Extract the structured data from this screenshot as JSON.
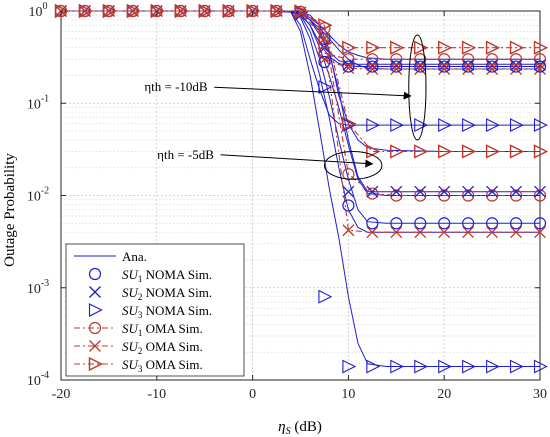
{
  "chart_data": {
    "type": "line",
    "title": "",
    "xlabel": "ηS (dB)",
    "ylabel": "Outage Probability",
    "xlim": [
      -20,
      30
    ],
    "ylim": [
      0.0001,
      1
    ],
    "yscale": "log",
    "grid": true,
    "legend_placement": "bottom-left",
    "x_ticks": [
      -20,
      -10,
      0,
      10,
      20,
      30
    ],
    "x_tick_labels": [
      "-20",
      "-10",
      "0",
      "10",
      "20",
      "30"
    ],
    "y_ticks": [
      0.0001,
      0.001,
      0.01,
      0.1,
      1
    ],
    "y_tick_labels": [
      {
        "base": "10",
        "exp": "-4"
      },
      {
        "base": "10",
        "exp": "-3"
      },
      {
        "base": "10",
        "exp": "-2"
      },
      {
        "base": "10",
        "exp": "-1"
      },
      {
        "base": "10",
        "exp": "0"
      }
    ],
    "annotations": [
      {
        "text": "ηth = -10dB",
        "at": [
          -8,
          0.135
        ],
        "arrow_to": [
          16.5,
          0.12
        ]
      },
      {
        "text": "ηth = -5dB",
        "at": [
          -7,
          0.025
        ],
        "arrow_to": [
          12.5,
          0.022
        ]
      }
    ],
    "ellipses": [
      {
        "center": [
          17.2,
          0.13
        ],
        "width_x": 1.8,
        "y_range": [
          0.04,
          0.55
        ]
      },
      {
        "center": [
          10.5,
          0.021
        ],
        "width_x": 6,
        "y_range": [
          0.015,
          0.03
        ]
      }
    ],
    "analytic_curves": [
      {
        "x": [
          -20,
          2,
          4,
          5,
          6,
          7,
          8,
          9,
          10,
          11,
          12,
          14,
          20,
          30
        ],
        "y": [
          1,
          1,
          0.99,
          0.93,
          0.7,
          0.45,
          0.32,
          0.27,
          0.255,
          0.25,
          0.25,
          0.25,
          0.25,
          0.25
        ]
      },
      {
        "x": [
          -20,
          2,
          4,
          5,
          6,
          7,
          8,
          9,
          10,
          11,
          12,
          14,
          20,
          30
        ],
        "y": [
          1,
          1,
          0.99,
          0.95,
          0.8,
          0.55,
          0.36,
          0.29,
          0.27,
          0.265,
          0.265,
          0.265,
          0.265,
          0.265
        ]
      },
      {
        "x": [
          -20,
          2,
          4,
          5,
          6,
          7,
          8,
          9,
          10,
          11,
          12,
          14,
          20,
          30
        ],
        "y": [
          1,
          1,
          0.98,
          0.7,
          0.3,
          0.14,
          0.075,
          0.06,
          0.058,
          0.058,
          0.058,
          0.058,
          0.058,
          0.058
        ]
      },
      {
        "x": [
          -20,
          2,
          4,
          5,
          6,
          7,
          8,
          9,
          10,
          11,
          12,
          14,
          20,
          30
        ],
        "y": [
          1,
          1,
          0.99,
          0.95,
          0.85,
          0.7,
          0.55,
          0.43,
          0.36,
          0.33,
          0.31,
          0.3,
          0.3,
          0.3
        ]
      },
      {
        "x": [
          -20,
          2,
          4,
          5,
          6,
          7,
          8,
          9,
          10,
          11,
          12,
          14,
          20,
          30
        ],
        "y": [
          1,
          1,
          0.99,
          0.93,
          0.8,
          0.65,
          0.5,
          0.38,
          0.3,
          0.26,
          0.24,
          0.235,
          0.235,
          0.235
        ]
      },
      {
        "x": [
          -20,
          2,
          4,
          5,
          6,
          7,
          8,
          9,
          10,
          11,
          12,
          14,
          20,
          30
        ],
        "y": [
          1,
          1,
          0.99,
          0.97,
          0.9,
          0.7,
          0.38,
          0.12,
          0.06,
          0.04,
          0.033,
          0.031,
          0.03,
          0.03
        ]
      },
      {
        "x": [
          -20,
          2,
          4,
          5,
          6,
          7,
          8,
          9,
          10,
          11,
          12,
          14,
          20,
          30
        ],
        "y": [
          1,
          1,
          0.99,
          0.9,
          0.6,
          0.3,
          0.12,
          0.04,
          0.015,
          0.007,
          0.0052,
          0.005,
          0.005,
          0.005
        ]
      },
      {
        "x": [
          -20,
          2,
          4,
          5,
          6,
          7,
          8,
          9,
          10,
          11,
          12,
          14,
          20,
          30
        ],
        "y": [
          1,
          1,
          0.98,
          0.85,
          0.5,
          0.2,
          0.07,
          0.02,
          0.007,
          0.0045,
          0.004,
          0.004,
          0.004,
          0.004
        ]
      },
      {
        "x": [
          -20,
          2,
          4,
          5,
          6,
          7,
          8,
          9,
          10,
          11,
          12,
          14,
          20,
          30
        ],
        "y": [
          1,
          1,
          0.99,
          0.95,
          0.8,
          0.6,
          0.35,
          0.14,
          0.04,
          0.016,
          0.011,
          0.011,
          0.011,
          0.011
        ]
      },
      {
        "x": [
          -20,
          2,
          4,
          5,
          6,
          7,
          8,
          9,
          10,
          11,
          12,
          14,
          20,
          30
        ],
        "y": [
          1,
          1,
          0.99,
          0.92,
          0.7,
          0.4,
          0.2,
          0.09,
          0.035,
          0.015,
          0.0105,
          0.01,
          0.01,
          0.01
        ]
      },
      {
        "x": [
          -20,
          2,
          4,
          5,
          6,
          7,
          8,
          9,
          10,
          11,
          12,
          14,
          20,
          30
        ],
        "y": [
          1,
          1,
          0.97,
          0.6,
          0.2,
          0.05,
          0.012,
          0.0035,
          0.0008,
          0.00025,
          0.00015,
          0.00014,
          0.00014,
          0.00014
        ]
      }
    ],
    "series": [
      {
        "name": "Ana.",
        "style": "line",
        "color": "#1f1fd0"
      },
      {
        "name": "SU1 NOMA Sim.",
        "sub": "1",
        "tail": " NOMA Sim.",
        "marker": "circle",
        "color": "#1f1fd0",
        "points": [
          [
            -20,
            1
          ],
          [
            -17.5,
            1
          ],
          [
            -15,
            1
          ],
          [
            -12.5,
            1
          ],
          [
            -10,
            1
          ],
          [
            -7.5,
            1
          ],
          [
            -5,
            1
          ],
          [
            -2.5,
            1
          ],
          [
            0,
            1
          ],
          [
            2.5,
            1
          ],
          [
            5,
            0.98
          ],
          [
            7.5,
            0.5
          ],
          [
            10,
            0.0078
          ],
          [
            12.5,
            0.005
          ],
          [
            15,
            0.005
          ],
          [
            17.5,
            0.005
          ],
          [
            20,
            0.005
          ],
          [
            22.5,
            0.005
          ],
          [
            25,
            0.005
          ],
          [
            27.5,
            0.005
          ],
          [
            30,
            0.005
          ]
        ]
      },
      {
        "name": "SU2 NOMA Sim.",
        "sub": "2",
        "tail": " NOMA Sim.",
        "marker": "x",
        "color": "#1f1fd0",
        "points": [
          [
            -20,
            1
          ],
          [
            -17.5,
            1
          ],
          [
            -15,
            1
          ],
          [
            -12.5,
            1
          ],
          [
            -10,
            1
          ],
          [
            -7.5,
            1
          ],
          [
            -5,
            1
          ],
          [
            -2.5,
            1
          ],
          [
            0,
            1
          ],
          [
            2.5,
            1
          ],
          [
            5,
            0.9
          ],
          [
            7.5,
            0.4
          ],
          [
            10,
            0.26
          ],
          [
            12.5,
            0.26
          ],
          [
            15,
            0.26
          ],
          [
            17.5,
            0.26
          ],
          [
            20,
            0.26
          ],
          [
            22.5,
            0.26
          ],
          [
            25,
            0.26
          ],
          [
            27.5,
            0.26
          ],
          [
            30,
            0.26
          ]
        ]
      },
      {
        "name": "SU3 NOMA Sim.",
        "sub": "3",
        "tail": " NOMA Sim.",
        "marker": "triangle",
        "color": "#1f1fd0",
        "points": [
          [
            -20,
            1
          ],
          [
            -17.5,
            1
          ],
          [
            -15,
            1
          ],
          [
            -12.5,
            1
          ],
          [
            -10,
            1
          ],
          [
            -7.5,
            1
          ],
          [
            -5,
            1
          ],
          [
            -2.5,
            1
          ],
          [
            0,
            1
          ],
          [
            2.5,
            1
          ],
          [
            5,
            0.96
          ],
          [
            7.5,
            0.15
          ],
          [
            10,
            0.058
          ],
          [
            12.5,
            0.058
          ],
          [
            15,
            0.058
          ],
          [
            17.5,
            0.058
          ],
          [
            20,
            0.058
          ],
          [
            22.5,
            0.058
          ],
          [
            25,
            0.058
          ],
          [
            27.5,
            0.058
          ],
          [
            30,
            0.058
          ]
        ]
      },
      {
        "name": "SU1 OMA Sim.",
        "sub": "1",
        "tail": " OMA Sim.",
        "marker": "circle",
        "color": "#c0382b",
        "points": [
          [
            -20,
            1
          ],
          [
            -17.5,
            1
          ],
          [
            -15,
            1
          ],
          [
            -12.5,
            1
          ],
          [
            -10,
            1
          ],
          [
            -7.5,
            1
          ],
          [
            -5,
            1
          ],
          [
            -2.5,
            1
          ],
          [
            0,
            1
          ],
          [
            2.5,
            1
          ],
          [
            5,
            0.98
          ],
          [
            7.5,
            0.65
          ],
          [
            10,
            0.017
          ],
          [
            12.5,
            0.0105
          ],
          [
            15,
            0.01
          ],
          [
            17.5,
            0.01
          ],
          [
            20,
            0.01
          ],
          [
            22.5,
            0.01
          ],
          [
            25,
            0.01
          ],
          [
            27.5,
            0.01
          ],
          [
            30,
            0.01
          ]
        ]
      },
      {
        "name": "SU2 OMA Sim.",
        "sub": "2",
        "tail": " OMA Sim.",
        "marker": "x",
        "color": "#c0382b",
        "points": [
          [
            -20,
            1
          ],
          [
            -17.5,
            1
          ],
          [
            -15,
            1
          ],
          [
            -12.5,
            1
          ],
          [
            -10,
            1
          ],
          [
            -7.5,
            1
          ],
          [
            -5,
            1
          ],
          [
            -2.5,
            1
          ],
          [
            0,
            1
          ],
          [
            2.5,
            1
          ],
          [
            5,
            0.97
          ],
          [
            7.5,
            0.5
          ],
          [
            10,
            0.0042
          ],
          [
            12.5,
            0.004
          ],
          [
            15,
            0.004
          ],
          [
            17.5,
            0.004
          ],
          [
            20,
            0.004
          ],
          [
            22.5,
            0.004
          ],
          [
            25,
            0.004
          ],
          [
            27.5,
            0.004
          ],
          [
            30,
            0.004
          ]
        ]
      },
      {
        "name": "SU3 OMA Sim.",
        "sub": "3",
        "tail": " OMA Sim.",
        "marker": "triangle-right",
        "color": "#c0382b",
        "points": [
          [
            -20,
            1
          ],
          [
            -17.5,
            1
          ],
          [
            -15,
            1
          ],
          [
            -12.5,
            1
          ],
          [
            -10,
            1
          ],
          [
            -7.5,
            1
          ],
          [
            -5,
            1
          ],
          [
            -2.5,
            1
          ],
          [
            0,
            1
          ],
          [
            2.5,
            1
          ],
          [
            5,
            0.99
          ],
          [
            7.5,
            0.7
          ],
          [
            10,
            0.06
          ],
          [
            12.5,
            0.03
          ],
          [
            15,
            0.03
          ],
          [
            17.5,
            0.03
          ],
          [
            20,
            0.03
          ],
          [
            22.5,
            0.03
          ],
          [
            25,
            0.03
          ],
          [
            27.5,
            0.03
          ],
          [
            30,
            0.03
          ]
        ]
      }
    ],
    "extra_markers": [
      {
        "marker": "circle",
        "color": "#c0382b",
        "points": [
          [
            7.5,
            0.35
          ],
          [
            10,
            0.3
          ],
          [
            12.5,
            0.3
          ],
          [
            15,
            0.3
          ],
          [
            17.5,
            0.3
          ],
          [
            20,
            0.3
          ],
          [
            22.5,
            0.3
          ],
          [
            25,
            0.3
          ],
          [
            27.5,
            0.3
          ],
          [
            30,
            0.3
          ]
        ]
      },
      {
        "marker": "x",
        "color": "#c0382b",
        "points": [
          [
            7.5,
            0.3
          ],
          [
            10,
            0.24
          ],
          [
            12.5,
            0.235
          ],
          [
            15,
            0.235
          ],
          [
            17.5,
            0.235
          ],
          [
            20,
            0.235
          ],
          [
            22.5,
            0.235
          ],
          [
            25,
            0.235
          ],
          [
            27.5,
            0.235
          ],
          [
            30,
            0.235
          ]
        ]
      },
      {
        "marker": "circle",
        "color": "#1f1fd0",
        "points": [
          [
            7.5,
            0.28
          ],
          [
            10,
            0.25
          ],
          [
            12.5,
            0.25
          ],
          [
            15,
            0.25
          ],
          [
            17.5,
            0.25
          ],
          [
            20,
            0.25
          ],
          [
            22.5,
            0.25
          ],
          [
            25,
            0.25
          ],
          [
            27.5,
            0.25
          ],
          [
            30,
            0.25
          ]
        ]
      },
      {
        "marker": "x",
        "color": "#1f1fd0",
        "points": [
          [
            10,
            0.011
          ],
          [
            12.5,
            0.011
          ],
          [
            15,
            0.011
          ],
          [
            17.5,
            0.011
          ],
          [
            20,
            0.011
          ],
          [
            22.5,
            0.011
          ],
          [
            25,
            0.011
          ],
          [
            27.5,
            0.011
          ],
          [
            30,
            0.011
          ]
        ]
      },
      {
        "marker": "triangle",
        "color": "#1f1fd0",
        "points": [
          [
            7.5,
            0.0008
          ],
          [
            10,
            0.00014
          ],
          [
            12.5,
            0.00014
          ],
          [
            15,
            0.00014
          ],
          [
            17.5,
            0.00014
          ],
          [
            20,
            0.00014
          ],
          [
            22.5,
            0.00014
          ],
          [
            25,
            0.00014
          ],
          [
            27.5,
            0.00014
          ],
          [
            30,
            0.00014
          ]
        ]
      },
      {
        "marker": "triangle-right",
        "color": "#c0382b",
        "points": [
          [
            7.5,
            0.45
          ],
          [
            10,
            0.4
          ],
          [
            12.5,
            0.4
          ],
          [
            15,
            0.4
          ],
          [
            17.5,
            0.4
          ],
          [
            20,
            0.4
          ],
          [
            22.5,
            0.4
          ],
          [
            25,
            0.4
          ],
          [
            27.5,
            0.4
          ],
          [
            30,
            0.4
          ]
        ]
      }
    ]
  }
}
